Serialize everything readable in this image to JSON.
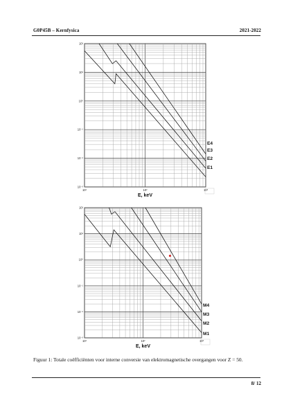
{
  "header": {
    "left": "G0P45B – Kernfysica",
    "right": "2021-2022"
  },
  "charts": {
    "top": {
      "xlabel": "E, keV",
      "x_ticks": [
        "10¹",
        "10²",
        "10³"
      ],
      "y_ticks": [
        "10²",
        "10¹",
        "10⁰",
        "10⁻¹",
        "10⁻²",
        "10⁻³"
      ],
      "series": [
        "E4",
        "E3",
        "E2",
        "E1"
      ]
    },
    "bottom": {
      "xlabel": "E, keV",
      "x_ticks": [
        "10¹",
        "10²",
        "10³"
      ],
      "y_ticks": [
        "10²",
        "10¹",
        "10⁰",
        "10⁻¹",
        "10⁻²",
        "10⁻³"
      ],
      "series": [
        "M4",
        "M3",
        "M2",
        "M1"
      ],
      "marker_color": "#d62020"
    }
  },
  "caption": "Figuur 1: Totale coëfficiënten voor interne conversie van elektromagnetische overgangen voor Z = 50.",
  "page_number": "8/ 12"
}
